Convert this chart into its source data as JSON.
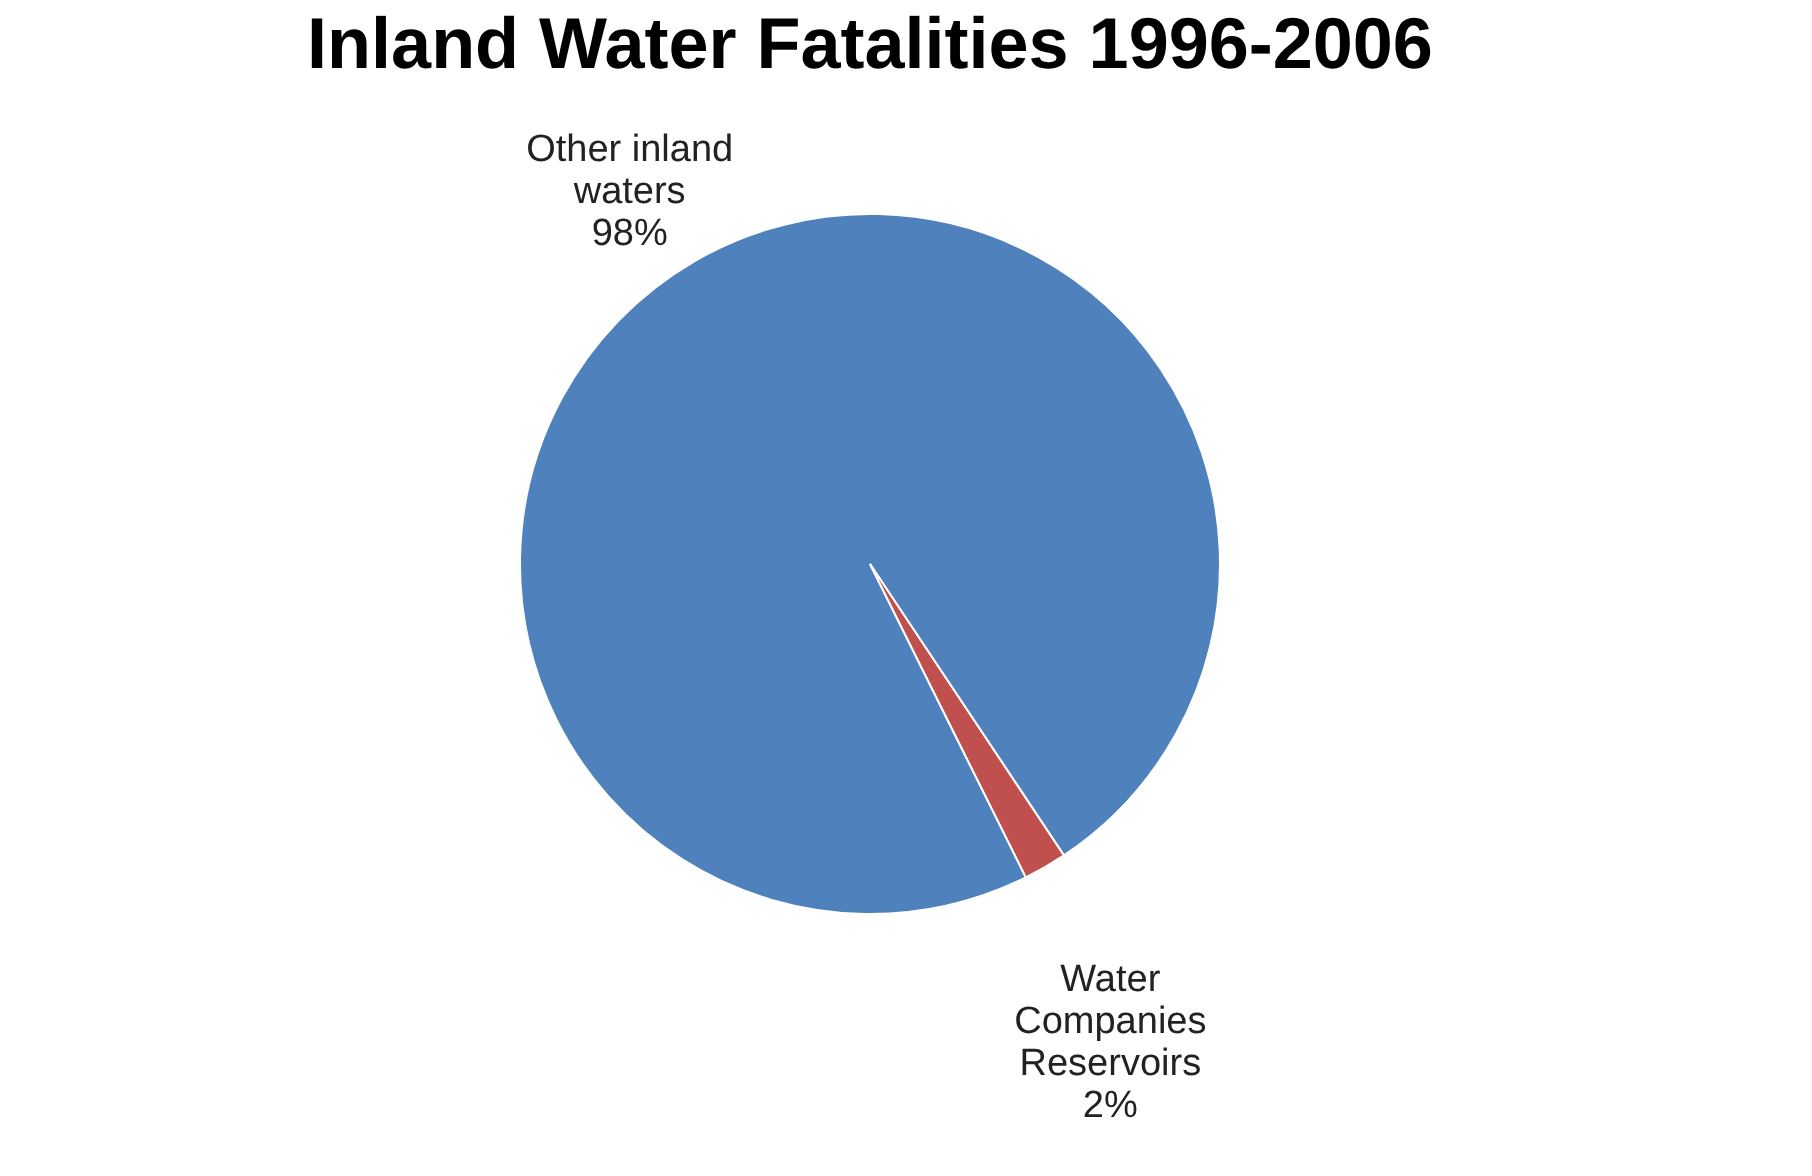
{
  "chart_data": {
    "type": "pie",
    "title": "Inland Water Fatalities 1996-2006",
    "categories": [
      "Other inland waters",
      "Water Companies Reservoirs"
    ],
    "values": [
      98,
      2
    ],
    "value_labels": [
      "98%",
      "2%"
    ],
    "colors": [
      "#4f81bd",
      "#c0504d"
    ],
    "legend": false
  }
}
